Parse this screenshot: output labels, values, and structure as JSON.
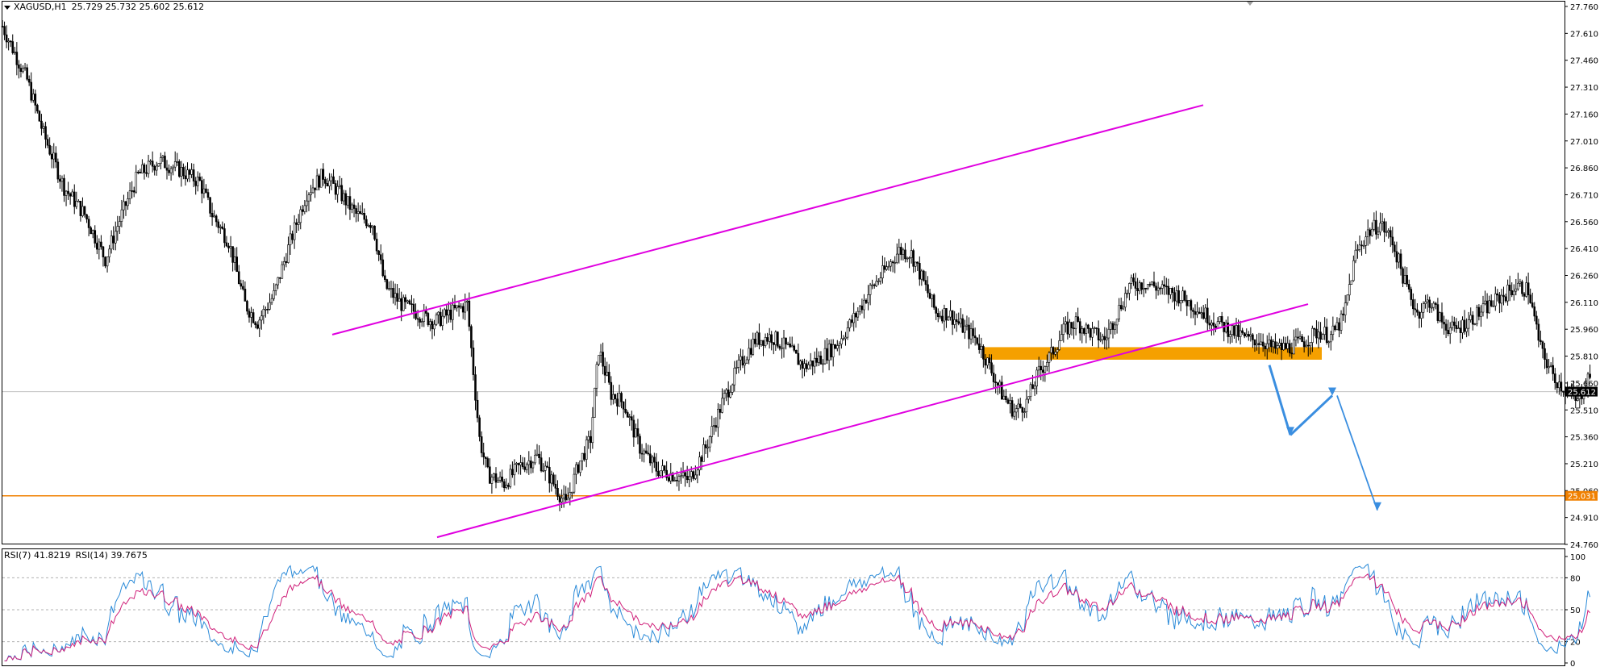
{
  "header": {
    "symbol": "XAGUSD,H1",
    "open": "25.729",
    "high": "25.732",
    "low": "25.602",
    "close": "25.612"
  },
  "rsi_header": {
    "rsi7_label": "RSI(7)",
    "rsi7_value": "41.8219",
    "rsi14_label": "RSI(14)",
    "rsi14_value": "39.7675"
  },
  "colors": {
    "candle": "#000000",
    "channel": "#e000e0",
    "support_zone": "#f5a000",
    "support_line": "#f08000",
    "arrows": "#3a8ee0",
    "rsi7": "#2a8ad8",
    "rsi14": "#d0207a",
    "bid_line": "#c0c0c0",
    "price_tag_bg": "#000000",
    "level_tag_bg": "#f08000"
  },
  "chart_data": {
    "type": "candlestick",
    "symbol": "XAGUSD",
    "timeframe": "H1",
    "ylim": [
      24.76,
      27.76
    ],
    "y_ticks": [
      "27.760",
      "27.610",
      "27.460",
      "27.310",
      "27.160",
      "27.010",
      "26.860",
      "26.710",
      "26.560",
      "26.410",
      "26.260",
      "26.110",
      "25.960",
      "25.810",
      "25.660",
      "25.510",
      "25.360",
      "25.210",
      "25.060",
      "24.910",
      "24.760"
    ],
    "current_price": "25.612",
    "support_level": "25.031",
    "close_path": [
      [
        0,
        27.65
      ],
      [
        6,
        27.5
      ],
      [
        12,
        27.35
      ],
      [
        20,
        27.05
      ],
      [
        30,
        26.75
      ],
      [
        40,
        26.6
      ],
      [
        50,
        26.35
      ],
      [
        58,
        26.6
      ],
      [
        66,
        26.82
      ],
      [
        76,
        26.9
      ],
      [
        86,
        26.85
      ],
      [
        96,
        26.78
      ],
      [
        102,
        26.6
      ],
      [
        110,
        26.45
      ],
      [
        118,
        26.1
      ],
      [
        124,
        26.0
      ],
      [
        132,
        26.15
      ],
      [
        140,
        26.45
      ],
      [
        148,
        26.72
      ],
      [
        156,
        26.82
      ],
      [
        164,
        26.72
      ],
      [
        172,
        26.6
      ],
      [
        180,
        26.55
      ],
      [
        186,
        26.2
      ],
      [
        194,
        26.1
      ],
      [
        202,
        26.05
      ],
      [
        210,
        26.0
      ],
      [
        218,
        26.05
      ],
      [
        226,
        26.1
      ],
      [
        232,
        25.35
      ],
      [
        236,
        25.15
      ],
      [
        244,
        25.1
      ],
      [
        252,
        25.2
      ],
      [
        260,
        25.25
      ],
      [
        268,
        25.1
      ],
      [
        274,
        24.98
      ],
      [
        280,
        25.2
      ],
      [
        286,
        25.35
      ],
      [
        290,
        25.85
      ],
      [
        296,
        25.6
      ],
      [
        302,
        25.55
      ],
      [
        310,
        25.3
      ],
      [
        318,
        25.18
      ],
      [
        326,
        25.15
      ],
      [
        334,
        25.12
      ],
      [
        342,
        25.3
      ],
      [
        350,
        25.55
      ],
      [
        358,
        25.75
      ],
      [
        366,
        25.9
      ],
      [
        374,
        25.92
      ],
      [
        382,
        25.85
      ],
      [
        390,
        25.75
      ],
      [
        398,
        25.8
      ],
      [
        406,
        25.88
      ],
      [
        414,
        26.02
      ],
      [
        422,
        26.18
      ],
      [
        430,
        26.3
      ],
      [
        436,
        26.4
      ],
      [
        442,
        26.38
      ],
      [
        448,
        26.22
      ],
      [
        454,
        26.05
      ],
      [
        460,
        26.05
      ],
      [
        466,
        25.98
      ],
      [
        474,
        25.9
      ],
      [
        480,
        25.75
      ],
      [
        486,
        25.6
      ],
      [
        492,
        25.5
      ],
      [
        498,
        25.55
      ],
      [
        504,
        25.72
      ],
      [
        510,
        25.82
      ],
      [
        516,
        25.95
      ],
      [
        522,
        26.0
      ],
      [
        528,
        25.95
      ],
      [
        536,
        25.9
      ],
      [
        542,
        26.05
      ],
      [
        548,
        26.2
      ],
      [
        556,
        26.22
      ],
      [
        564,
        26.18
      ],
      [
        572,
        26.15
      ],
      [
        578,
        26.1
      ],
      [
        584,
        26.05
      ],
      [
        590,
        26.0
      ],
      [
        598,
        25.95
      ],
      [
        606,
        25.9
      ],
      [
        612,
        25.9
      ],
      [
        618,
        25.85
      ],
      [
        626,
        25.86
      ],
      [
        634,
        25.9
      ],
      [
        640,
        25.95
      ],
      [
        646,
        25.92
      ],
      [
        652,
        26.02
      ],
      [
        658,
        26.38
      ],
      [
        664,
        26.5
      ],
      [
        670,
        26.55
      ],
      [
        676,
        26.45
      ],
      [
        682,
        26.22
      ],
      [
        688,
        26.05
      ],
      [
        694,
        26.12
      ],
      [
        700,
        26.0
      ],
      [
        706,
        25.95
      ],
      [
        712,
        26.0
      ],
      [
        718,
        26.05
      ],
      [
        724,
        26.1
      ],
      [
        730,
        26.15
      ],
      [
        736,
        26.2
      ],
      [
        742,
        26.18
      ],
      [
        748,
        25.85
      ],
      [
        754,
        25.7
      ],
      [
        760,
        25.62
      ],
      [
        766,
        25.55
      ],
      [
        772,
        25.72
      ]
    ],
    "rsi": {
      "levels": [
        0,
        20,
        50,
        80,
        100
      ],
      "tick_labels": [
        "100",
        "80",
        "50",
        "20",
        "0"
      ],
      "rsi7_last": 41.8219,
      "rsi14_last": 39.7675
    }
  }
}
